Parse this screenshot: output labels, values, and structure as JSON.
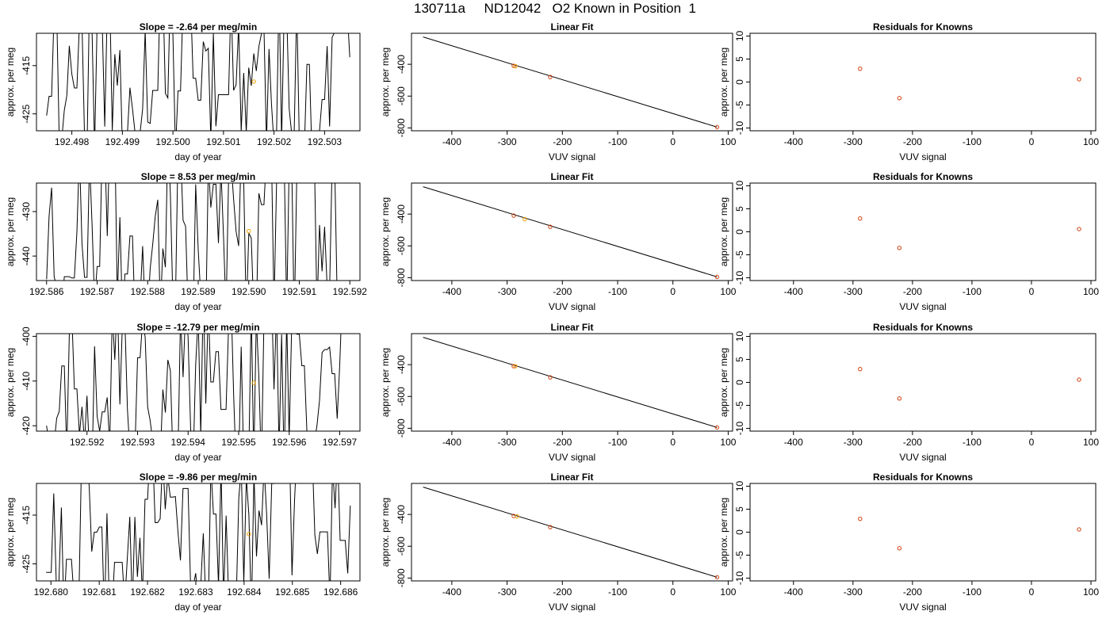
{
  "figure_title": "130711a     ND12042   O2 Known in Position  1",
  "colors": {
    "trace": "#000000",
    "fit_line": "#000000",
    "known_point": "#d04010",
    "marker_point": "#f0a000",
    "frame": "#000000"
  },
  "chart_data": [
    {
      "type": "line",
      "title": "Slope =  -2.64  per meg/min",
      "xlabel": "day of year",
      "ylabel": "approx. per meg",
      "xlim": [
        192.4973,
        192.5037
      ],
      "ylim": [
        -428.5,
        -408.3
      ],
      "xticks": [
        "192.498",
        "192.499",
        "192.500",
        "192.501",
        "192.502",
        "192.503"
      ],
      "xtick_values": [
        192.498,
        192.499,
        192.5,
        192.501,
        192.502,
        192.503
      ],
      "yticks": [
        "-415",
        "-425"
      ],
      "ytick_values": [
        -415,
        -425
      ],
      "series": [
        {
          "x_start": 192.4975,
          "x_end": 192.5035,
          "seed": 11,
          "y_mean": -416,
          "y_amp": 18
        }
      ],
      "marker_points": [
        {
          "x": 192.5016,
          "y": -418.3
        }
      ]
    },
    {
      "type": "scatter",
      "title": "Linear Fit",
      "xlabel": "VUV signal",
      "ylabel": "approx. per meg",
      "xlim": [
        -473,
        108
      ],
      "ylim": [
        -818,
        -205
      ],
      "xticks": [
        "-400",
        "-300",
        "-200",
        "-100",
        "0",
        "100"
      ],
      "xtick_values": [
        -400,
        -300,
        -200,
        -100,
        0,
        100
      ],
      "yticks": [
        "-400",
        "-600",
        "-800"
      ],
      "ytick_values": [
        -400,
        -600,
        -800
      ],
      "fit_line": {
        "x": [
          -452,
          80
        ],
        "y": [
          -228,
          -795
        ]
      },
      "known_points": [
        {
          "x": -288,
          "y": -410
        },
        {
          "x": -222,
          "y": -480
        },
        {
          "x": 80,
          "y": -795
        }
      ],
      "marker_points": [
        {
          "x": -285,
          "y": -412
        }
      ]
    },
    {
      "type": "scatter",
      "title": "Residuals for Knowns",
      "xlabel": "VUV signal",
      "ylabel": "approx. per meg",
      "xlim": [
        -473,
        108
      ],
      "ylim": [
        -10.6,
        10.6
      ],
      "xticks": [
        "-400",
        "-300",
        "-200",
        "-100",
        "0",
        "100"
      ],
      "xtick_values": [
        -400,
        -300,
        -200,
        -100,
        0,
        100
      ],
      "yticks": [
        "-10",
        "-5",
        "0",
        "5",
        "10"
      ],
      "ytick_values": [
        -10,
        -5,
        0,
        5,
        10
      ],
      "known_points": [
        {
          "x": -288,
          "y": 2.9
        },
        {
          "x": -222,
          "y": -3.5
        },
        {
          "x": 80,
          "y": 0.6
        }
      ]
    },
    {
      "type": "line",
      "title": "Slope =  8.53  per meg/min",
      "xlabel": "day of year",
      "ylabel": "approx. per meg",
      "xlim": [
        192.5858,
        192.5922
      ],
      "ylim": [
        -445.5,
        -423.6
      ],
      "xticks": [
        "192.586",
        "192.587",
        "192.588",
        "192.589",
        "192.590",
        "192.591",
        "192.592"
      ],
      "xtick_values": [
        192.586,
        192.587,
        192.588,
        192.589,
        192.59,
        192.591,
        192.592
      ],
      "yticks": [
        "-430",
        "-440"
      ],
      "ytick_values": [
        -430,
        -440
      ],
      "series": [
        {
          "x_start": 192.586,
          "x_end": 192.592,
          "seed": 23,
          "y_mean": -434,
          "y_amp": 22
        }
      ],
      "marker_points": [
        {
          "x": 192.59,
          "y": -434.4
        }
      ]
    },
    {
      "type": "scatter",
      "title": "Linear Fit",
      "xlabel": "VUV signal",
      "ylabel": "approx. per meg",
      "xlim": [
        -473,
        108
      ],
      "ylim": [
        -818,
        -205
      ],
      "xticks": [
        "-400",
        "-300",
        "-200",
        "-100",
        "0",
        "100"
      ],
      "xtick_values": [
        -400,
        -300,
        -200,
        -100,
        0,
        100
      ],
      "yticks": [
        "-400",
        "-600",
        "-800"
      ],
      "ytick_values": [
        -400,
        -600,
        -800
      ],
      "fit_line": {
        "x": [
          -452,
          80
        ],
        "y": [
          -228,
          -795
        ]
      },
      "known_points": [
        {
          "x": -288,
          "y": -410
        },
        {
          "x": -222,
          "y": -480
        },
        {
          "x": 80,
          "y": -795
        }
      ],
      "marker_points": [
        {
          "x": -268,
          "y": -432
        }
      ]
    },
    {
      "type": "scatter",
      "title": "Residuals for Knowns",
      "xlabel": "VUV signal",
      "ylabel": "approx. per meg",
      "xlim": [
        -473,
        108
      ],
      "ylim": [
        -10.6,
        10.6
      ],
      "xticks": [
        "-400",
        "-300",
        "-200",
        "-100",
        "0",
        "100"
      ],
      "xtick_values": [
        -400,
        -300,
        -200,
        -100,
        0,
        100
      ],
      "yticks": [
        "-10",
        "-5",
        "0",
        "5",
        "10"
      ],
      "ytick_values": [
        -10,
        -5,
        0,
        5,
        10
      ],
      "known_points": [
        {
          "x": -288,
          "y": 2.9
        },
        {
          "x": -222,
          "y": -3.5
        },
        {
          "x": 80,
          "y": 0.6
        }
      ]
    },
    {
      "type": "line",
      "title": "Slope =  -12.79  per meg/min",
      "xlabel": "day of year",
      "ylabel": "approx. per meg",
      "xlim": [
        192.591,
        192.5974
      ],
      "ylim": [
        -421.2,
        -399.4
      ],
      "xticks": [
        "192.592",
        "192.593",
        "192.594",
        "192.595",
        "192.596",
        "192.597"
      ],
      "xtick_values": [
        192.592,
        192.593,
        192.594,
        192.595,
        192.596,
        192.597
      ],
      "yticks": [
        "-400",
        "-410",
        "-420"
      ],
      "ytick_values": [
        -400,
        -410,
        -420
      ],
      "series": [
        {
          "x_start": 192.5912,
          "x_end": 192.5972,
          "seed": 37,
          "y_mean": -410,
          "y_amp": 20
        }
      ],
      "marker_points": [
        {
          "x": 192.5953,
          "y": -410.4
        }
      ]
    },
    {
      "type": "scatter",
      "title": "Linear Fit",
      "xlabel": "VUV signal",
      "ylabel": "approx. per meg",
      "xlim": [
        -473,
        108
      ],
      "ylim": [
        -818,
        -205
      ],
      "xticks": [
        "-400",
        "-300",
        "-200",
        "-100",
        "0",
        "100"
      ],
      "xtick_values": [
        -400,
        -300,
        -200,
        -100,
        0,
        100
      ],
      "yticks": [
        "-400",
        "-600",
        "-800"
      ],
      "ytick_values": [
        -400,
        -600,
        -800
      ],
      "fit_line": {
        "x": [
          -452,
          80
        ],
        "y": [
          -228,
          -795
        ]
      },
      "known_points": [
        {
          "x": -288,
          "y": -410
        },
        {
          "x": -222,
          "y": -480
        },
        {
          "x": 80,
          "y": -795
        }
      ],
      "marker_points": [
        {
          "x": -285,
          "y": -410
        }
      ]
    },
    {
      "type": "scatter",
      "title": "Residuals for Knowns",
      "xlabel": "VUV signal",
      "ylabel": "approx. per meg",
      "xlim": [
        -473,
        108
      ],
      "ylim": [
        -10.6,
        10.6
      ],
      "xticks": [
        "-400",
        "-300",
        "-200",
        "-100",
        "0",
        "100"
      ],
      "xtick_values": [
        -400,
        -300,
        -200,
        -100,
        0,
        100
      ],
      "yticks": [
        "-10",
        "-5",
        "0",
        "5",
        "10"
      ],
      "ytick_values": [
        -10,
        -5,
        0,
        5,
        10
      ],
      "known_points": [
        {
          "x": -288,
          "y": 2.9
        },
        {
          "x": -222,
          "y": -3.5
        },
        {
          "x": 80,
          "y": 0.6
        }
      ]
    },
    {
      "type": "line",
      "title": "Slope =  -9.86  per meg/min",
      "xlabel": "day of year",
      "ylabel": "approx. per meg",
      "xlim": [
        192.6797,
        192.6864
      ],
      "ylim": [
        -428.5,
        -408.5
      ],
      "xticks": [
        "192.680",
        "192.681",
        "192.682",
        "192.683",
        "192.684",
        "192.685",
        "192.686"
      ],
      "xtick_values": [
        192.68,
        192.681,
        192.682,
        192.683,
        192.684,
        192.685,
        192.686
      ],
      "yticks": [
        "-415",
        "-425"
      ],
      "ytick_values": [
        -415,
        -425
      ],
      "series": [
        {
          "x_start": 192.6799,
          "x_end": 192.6862,
          "seed": 53,
          "y_mean": -418,
          "y_amp": 18
        }
      ],
      "marker_points": [
        {
          "x": 192.6841,
          "y": -418.9
        }
      ]
    },
    {
      "type": "scatter",
      "title": "Linear Fit",
      "xlabel": "VUV signal",
      "ylabel": "approx. per meg",
      "xlim": [
        -473,
        108
      ],
      "ylim": [
        -818,
        -205
      ],
      "xticks": [
        "-400",
        "-300",
        "-200",
        "-100",
        "0",
        "100"
      ],
      "xtick_values": [
        -400,
        -300,
        -200,
        -100,
        0,
        100
      ],
      "yticks": [
        "-400",
        "-600",
        "-800"
      ],
      "ytick_values": [
        -400,
        -600,
        -800
      ],
      "fit_line": {
        "x": [
          -452,
          80
        ],
        "y": [
          -228,
          -795
        ]
      },
      "known_points": [
        {
          "x": -288,
          "y": -410
        },
        {
          "x": -222,
          "y": -480
        },
        {
          "x": 80,
          "y": -795
        }
      ],
      "marker_points": [
        {
          "x": -282,
          "y": -412
        }
      ]
    },
    {
      "type": "scatter",
      "title": "Residuals for Knowns",
      "xlabel": "VUV signal",
      "ylabel": "approx. per meg",
      "xlim": [
        -473,
        108
      ],
      "ylim": [
        -10.6,
        10.6
      ],
      "xticks": [
        "-400",
        "-300",
        "-200",
        "-100",
        "0",
        "100"
      ],
      "xtick_values": [
        -400,
        -300,
        -200,
        -100,
        0,
        100
      ],
      "yticks": [
        "-10",
        "-5",
        "0",
        "5",
        "10"
      ],
      "ytick_values": [
        -10,
        -5,
        0,
        5,
        10
      ],
      "known_points": [
        {
          "x": -288,
          "y": 2.9
        },
        {
          "x": -222,
          "y": -3.5
        },
        {
          "x": 80,
          "y": 0.6
        }
      ]
    }
  ]
}
